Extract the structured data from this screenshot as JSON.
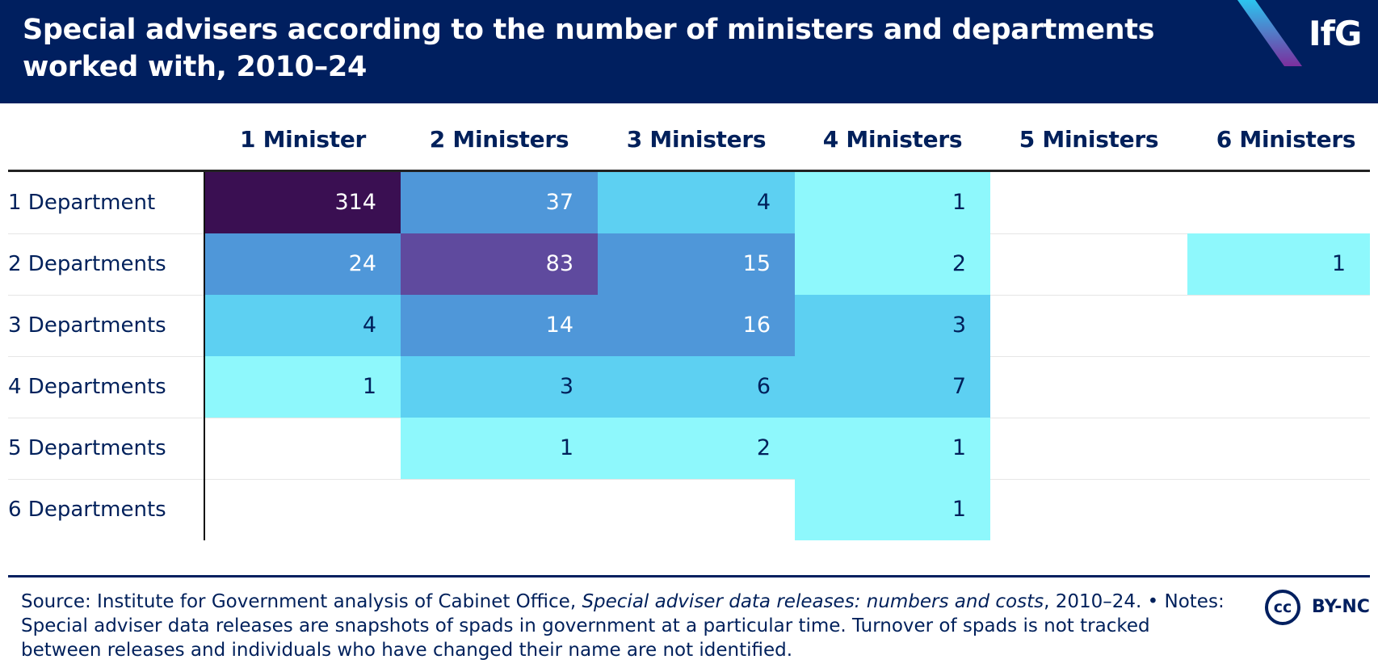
{
  "header": {
    "title": "Special advisers according to the number of ministers and departments worked with, 2010–24",
    "logo": "IfG"
  },
  "chart_data": {
    "type": "heatmap",
    "title": "Special advisers according to the number of ministers and departments worked with, 2010–24",
    "columns": [
      "1 Minister",
      "2 Ministers",
      "3 Ministers",
      "4 Ministers",
      "5 Ministers",
      "6 Ministers"
    ],
    "rows": [
      "1 Department",
      "2 Departments",
      "3 Departments",
      "4 Departments",
      "5 Departments",
      "6 Departments"
    ],
    "values": [
      [
        314,
        37,
        4,
        1,
        null,
        null
      ],
      [
        24,
        83,
        15,
        2,
        null,
        1
      ],
      [
        4,
        14,
        16,
        3,
        null,
        null
      ],
      [
        1,
        3,
        6,
        7,
        null,
        null
      ],
      [
        null,
        1,
        2,
        1,
        null,
        null
      ],
      [
        null,
        null,
        null,
        1,
        null,
        null
      ]
    ],
    "color_scale": [
      {
        "min": 1,
        "max": 2,
        "color": "#8ef8fc",
        "text": "#00205b"
      },
      {
        "min": 3,
        "max": 9,
        "color": "#5dd0f2",
        "text": "#00205b"
      },
      {
        "min": 10,
        "max": 49,
        "color": "#4f97d9",
        "text": "#ffffff"
      },
      {
        "min": 50,
        "max": 199,
        "color": "#5f4a9e",
        "text": "#ffffff"
      },
      {
        "min": 200,
        "max": 1000,
        "color": "#3a0f52",
        "text": "#ffffff"
      }
    ]
  },
  "footer": {
    "source_prefix": "Source: Institute for Government analysis of Cabinet Office, ",
    "source_title": "Special adviser data releases: numbers and costs",
    "source_suffix": ", 2010–24. • Notes: Special adviser data releases are snapshots of spads in government at a particular time. Turnover of spads is not tracked between releases and individuals who have changed their name are not identified."
  },
  "license": {
    "cc": "cc",
    "label": "BY-NC"
  },
  "colors": {
    "navy": "#001f5f",
    "logo_gradient_top": "#2bc4ef",
    "logo_gradient_bottom": "#7b2f9e"
  }
}
